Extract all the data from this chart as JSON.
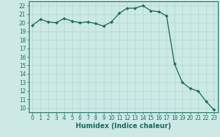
{
  "x": [
    0,
    1,
    2,
    3,
    4,
    5,
    6,
    7,
    8,
    9,
    10,
    11,
    12,
    13,
    14,
    15,
    16,
    17,
    18,
    19,
    20,
    21,
    22,
    23
  ],
  "y": [
    19.7,
    20.4,
    20.1,
    20.0,
    20.5,
    20.2,
    20.0,
    20.1,
    19.9,
    19.6,
    20.1,
    21.1,
    21.7,
    21.7,
    22.0,
    21.4,
    21.3,
    20.8,
    15.2,
    13.0,
    12.3,
    12.0,
    10.8,
    9.8
  ],
  "line_color": "#1a6b5e",
  "marker": "D",
  "marker_size": 2.0,
  "linewidth": 1.0,
  "bg_color": "#cce9e5",
  "grid_color": "#aed4cf",
  "xlabel": "Humidex (Indice chaleur)",
  "xlim": [
    -0.5,
    23.5
  ],
  "ylim": [
    9.5,
    22.5
  ],
  "yticks": [
    10,
    11,
    12,
    13,
    14,
    15,
    16,
    17,
    18,
    19,
    20,
    21,
    22
  ],
  "xticks": [
    0,
    1,
    2,
    3,
    4,
    5,
    6,
    7,
    8,
    9,
    10,
    11,
    12,
    13,
    14,
    15,
    16,
    17,
    18,
    19,
    20,
    21,
    22,
    23
  ],
  "tick_fontsize": 5.5,
  "label_fontsize": 7.0
}
